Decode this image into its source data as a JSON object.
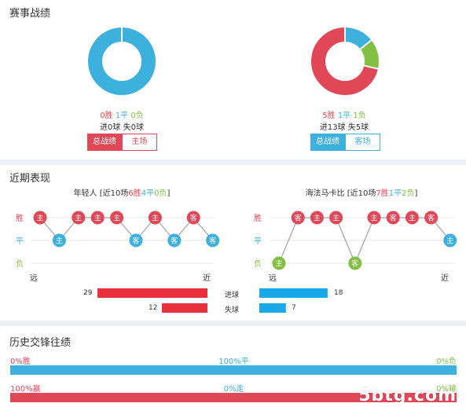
{
  "colors": {
    "red": "#e04858",
    "blue": "#3eb0de",
    "green": "#82bf43",
    "bar_red": "#e8303c",
    "bar_blue": "#18a8e8"
  },
  "record": {
    "title": "赛事战绩",
    "left": {
      "wins": 0,
      "draws": 1,
      "losses": 0,
      "win_text": "0胜",
      "draw_text": "1平",
      "loss_text": "0负",
      "goals_text": "进0球  失0球",
      "btn_total": "总战绩",
      "btn_venue": "主场"
    },
    "right": {
      "wins": 5,
      "draws": 1,
      "losses": 1,
      "win_text": "5胜",
      "draw_text": "1平",
      "loss_text": "1负",
      "goals_text": "进13球  失5球",
      "btn_total": "总战绩",
      "btn_venue": "客场"
    }
  },
  "recent": {
    "title": "近期表现",
    "left": {
      "name": "年轻人",
      "header_pre": "[近10场",
      "w": "6胜",
      "d": "4平",
      "l": "0负",
      "header_post": "]",
      "results": [
        {
          "level": "win",
          "venue": "主"
        },
        {
          "level": "draw",
          "venue": "主"
        },
        {
          "level": "win",
          "venue": "主"
        },
        {
          "level": "win",
          "venue": "主"
        },
        {
          "level": "win",
          "venue": "主"
        },
        {
          "level": "draw",
          "venue": "客"
        },
        {
          "level": "win",
          "venue": "主"
        },
        {
          "level": "draw",
          "venue": "客"
        },
        {
          "level": "win",
          "venue": "客"
        },
        {
          "level": "draw",
          "venue": "客"
        }
      ]
    },
    "right": {
      "name": "海法马卡比",
      "header_pre": "[近10场",
      "w": "7胜",
      "d": "1平",
      "l": "2负",
      "header_post": "]",
      "results": [
        {
          "level": "loss",
          "venue": "主"
        },
        {
          "level": "win",
          "venue": "客"
        },
        {
          "level": "win",
          "venue": "主"
        },
        {
          "level": "win",
          "venue": "主"
        },
        {
          "level": "loss",
          "venue": "客"
        },
        {
          "level": "win",
          "venue": "主"
        },
        {
          "level": "win",
          "venue": "客"
        },
        {
          "level": "win",
          "venue": "主"
        },
        {
          "level": "win",
          "venue": "客"
        },
        {
          "level": "draw",
          "venue": "主"
        }
      ]
    },
    "axis": {
      "win": "胜",
      "draw": "平",
      "loss": "负",
      "far": "远",
      "near": "近"
    },
    "stats": {
      "scored_label": "进球",
      "conceded_label": "失球",
      "left_scored": 29,
      "left_conceded": 12,
      "right_scored": 18,
      "right_conceded": 7
    }
  },
  "history": {
    "title": "历史交锋往绩",
    "row1": {
      "left": "0%胜",
      "mid": "100%平",
      "right": "0%负",
      "win_pct": 0,
      "draw_pct": 100,
      "loss_pct": 0
    },
    "row2": {
      "left": "100%赢",
      "mid": "0%走",
      "right": "0%输",
      "win_pct": 100,
      "push_pct": 0,
      "lose_pct": 0
    }
  },
  "watermark": "5btg.com"
}
